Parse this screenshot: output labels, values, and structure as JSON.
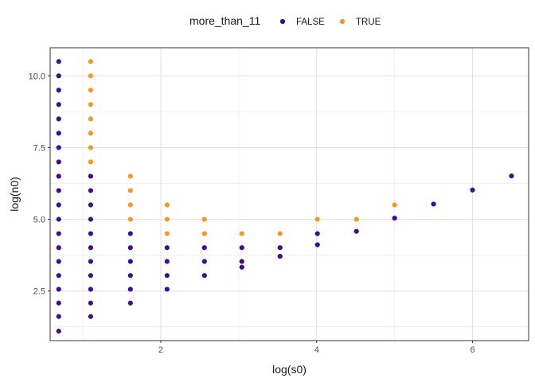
{
  "chart_data": {
    "type": "scatter",
    "title": "",
    "xlabel": "log(s0)",
    "ylabel": "log(n0)",
    "xlim": [
      0.58,
      6.72
    ],
    "ylim": [
      0.77,
      10.98
    ],
    "xticks": [
      2,
      4,
      6
    ],
    "xtick_labels": [
      "2",
      "4",
      "6"
    ],
    "yticks": [
      2.5,
      5.0,
      7.5,
      10.0
    ],
    "ytick_labels": [
      "2.5",
      "5.0",
      "7.5",
      "10.0"
    ],
    "grid": true,
    "legend": {
      "title": "more_than_11",
      "position": "top"
    },
    "series": [
      {
        "name": "FALSE",
        "color": "#3b0f8f",
        "points": [
          [
            0.69,
            1.1
          ],
          [
            0.69,
            1.61
          ],
          [
            0.69,
            2.08
          ],
          [
            0.69,
            2.56
          ],
          [
            0.69,
            3.04
          ],
          [
            0.69,
            3.53
          ],
          [
            0.69,
            4.01
          ],
          [
            0.69,
            4.5
          ],
          [
            0.69,
            5.0
          ],
          [
            0.69,
            5.5
          ],
          [
            0.69,
            6.0
          ],
          [
            0.69,
            6.5
          ],
          [
            0.69,
            7.0
          ],
          [
            0.69,
            7.5
          ],
          [
            0.69,
            8.0
          ],
          [
            0.69,
            8.5
          ],
          [
            0.69,
            9.0
          ],
          [
            0.69,
            9.5
          ],
          [
            0.69,
            10.0
          ],
          [
            0.69,
            10.5
          ],
          [
            1.1,
            1.61
          ],
          [
            1.1,
            2.08
          ],
          [
            1.1,
            2.56
          ],
          [
            1.1,
            3.04
          ],
          [
            1.1,
            3.53
          ],
          [
            1.1,
            4.01
          ],
          [
            1.1,
            4.5
          ],
          [
            1.1,
            5.0
          ],
          [
            1.1,
            5.5
          ],
          [
            1.1,
            6.0
          ],
          [
            1.1,
            6.5
          ],
          [
            1.61,
            2.08
          ],
          [
            1.61,
            2.56
          ],
          [
            1.61,
            3.04
          ],
          [
            1.61,
            3.53
          ],
          [
            1.61,
            4.01
          ],
          [
            1.61,
            4.5
          ],
          [
            2.08,
            2.56
          ],
          [
            2.08,
            3.04
          ],
          [
            2.08,
            3.53
          ],
          [
            2.08,
            4.01
          ],
          [
            2.56,
            3.04
          ],
          [
            2.56,
            3.53
          ],
          [
            2.56,
            4.01
          ],
          [
            3.04,
            3.33
          ],
          [
            3.04,
            3.53
          ],
          [
            3.04,
            4.01
          ],
          [
            3.53,
            3.71
          ],
          [
            3.53,
            4.01
          ],
          [
            4.01,
            4.11
          ],
          [
            4.01,
            4.5
          ],
          [
            4.51,
            4.58
          ],
          [
            5.0,
            5.04
          ],
          [
            5.5,
            5.53
          ],
          [
            6.0,
            6.02
          ],
          [
            6.5,
            6.51
          ]
        ]
      },
      {
        "name": "TRUE",
        "color": "#f5962a",
        "points": [
          [
            1.1,
            7.0
          ],
          [
            1.1,
            7.5
          ],
          [
            1.1,
            8.0
          ],
          [
            1.1,
            8.5
          ],
          [
            1.1,
            9.0
          ],
          [
            1.1,
            9.5
          ],
          [
            1.1,
            10.0
          ],
          [
            1.1,
            10.5
          ],
          [
            1.61,
            5.0
          ],
          [
            1.61,
            5.5
          ],
          [
            1.61,
            6.0
          ],
          [
            1.61,
            6.5
          ],
          [
            2.08,
            4.5
          ],
          [
            2.08,
            5.0
          ],
          [
            2.08,
            5.5
          ],
          [
            2.56,
            4.5
          ],
          [
            2.56,
            5.0
          ],
          [
            3.04,
            4.5
          ],
          [
            3.53,
            4.5
          ],
          [
            4.01,
            5.0
          ],
          [
            4.51,
            5.0
          ],
          [
            5.0,
            5.5
          ]
        ]
      }
    ]
  }
}
